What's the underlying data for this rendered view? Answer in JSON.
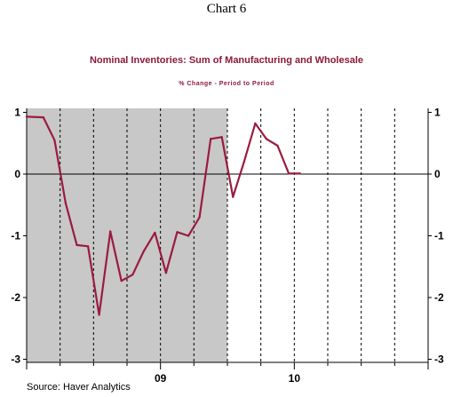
{
  "heading": "Chart 6",
  "source": "Source: Haver Analytics",
  "colors": {
    "series": "#9b1b3f",
    "shading": "#c8c8c8",
    "axis": "#000000"
  },
  "chart_data": {
    "type": "line",
    "title": "Nominal Inventories: Sum of Manufacturing and Wholesale",
    "subtitle": "% Change - Period to Period",
    "xlabel": "",
    "ylabel": "",
    "ylim": [
      -3,
      1
    ],
    "yticks": [
      "1",
      "0",
      "-1",
      "-2",
      "-3"
    ],
    "xtick_labels": [
      "09",
      "10"
    ],
    "recession_shading": {
      "from": "2008-01",
      "to": "2009-06"
    },
    "grid": "vertical dashed",
    "series": [
      {
        "x": [
          "2008-01",
          "2008-02",
          "2008-03",
          "2008-04",
          "2008-05",
          "2008-06",
          "2008-07",
          "2008-08",
          "2008-09",
          "2008-10",
          "2008-11",
          "2008-12",
          "2009-01",
          "2009-02",
          "2009-03",
          "2009-04",
          "2009-05",
          "2009-06",
          "2009-07",
          "2009-08",
          "2009-09",
          "2009-10",
          "2009-11",
          "2009-12",
          "2010-01",
          "2010-02",
          "2010-03",
          "2010-04",
          "2010-05",
          "2010-06",
          "2010-07",
          "2010-08",
          "2010-09",
          "2010-10",
          "2010-11",
          "2010-12"
        ],
        "values": [
          0.93,
          0.92,
          0.55,
          -0.47,
          -1.15,
          -1.17,
          -2.28,
          -0.93,
          -1.73,
          -1.63,
          -1.25,
          -0.95,
          -1.6,
          -0.94,
          -1.0,
          -0.7,
          0.57,
          0.6,
          -0.37,
          0.2,
          0.82,
          0.57,
          0.46,
          0.01,
          0.01,
          null,
          null,
          null,
          null,
          null,
          null,
          null,
          null,
          null,
          null,
          null
        ]
      }
    ]
  }
}
